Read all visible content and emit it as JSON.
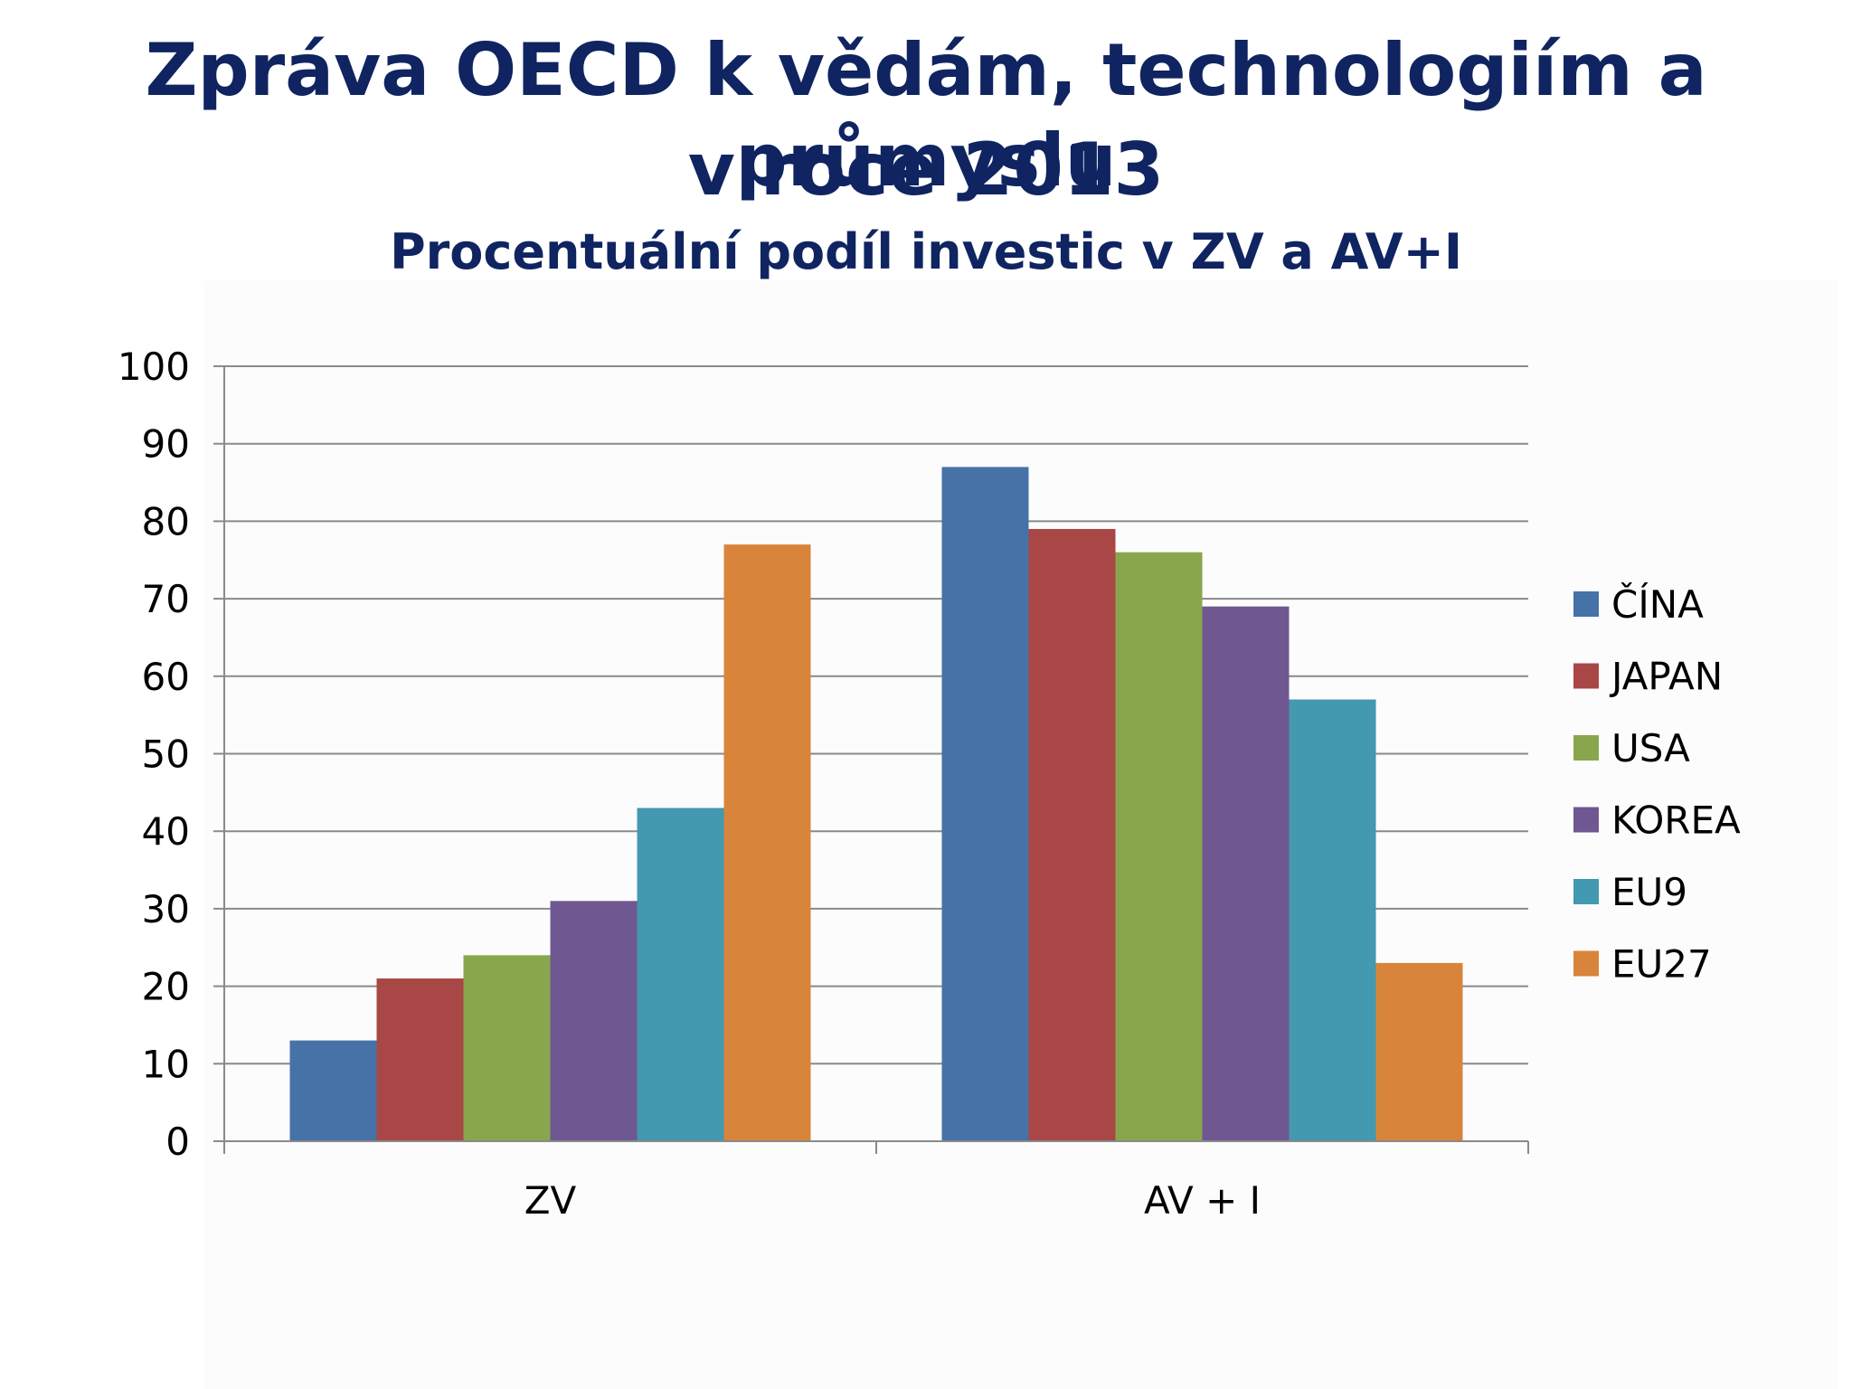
{
  "slide": {
    "title_line1": "Zpráva OECD k vědám, technologiím a průmyslu",
    "title_line2": "v roce 2013",
    "subtitle": "Procentuální podíl investic v ZV a AV+I"
  },
  "colors": {
    "title": "#0f2461",
    "series": [
      "#4672a8",
      "#a84745",
      "#89a64d",
      "#6f5891",
      "#4299b0",
      "#d9843b"
    ]
  },
  "chart_data": {
    "type": "bar",
    "title": "Procentuální podíl investic v ZV a AV+I",
    "categories": [
      "ZV",
      "AV + I"
    ],
    "series": [
      {
        "name": "ČÍNA",
        "values": [
          13,
          87
        ]
      },
      {
        "name": "JAPAN",
        "values": [
          21,
          79
        ]
      },
      {
        "name": "USA",
        "values": [
          24,
          76
        ]
      },
      {
        "name": "KOREA",
        "values": [
          31,
          69
        ]
      },
      {
        "name": "EU9",
        "values": [
          43,
          57
        ]
      },
      {
        "name": "EU27",
        "values": [
          77,
          23
        ]
      }
    ],
    "ylim": [
      0,
      100
    ],
    "yticks": [
      0,
      10,
      20,
      30,
      40,
      50,
      60,
      70,
      80,
      90,
      100
    ],
    "grid": true,
    "legend": "right"
  }
}
